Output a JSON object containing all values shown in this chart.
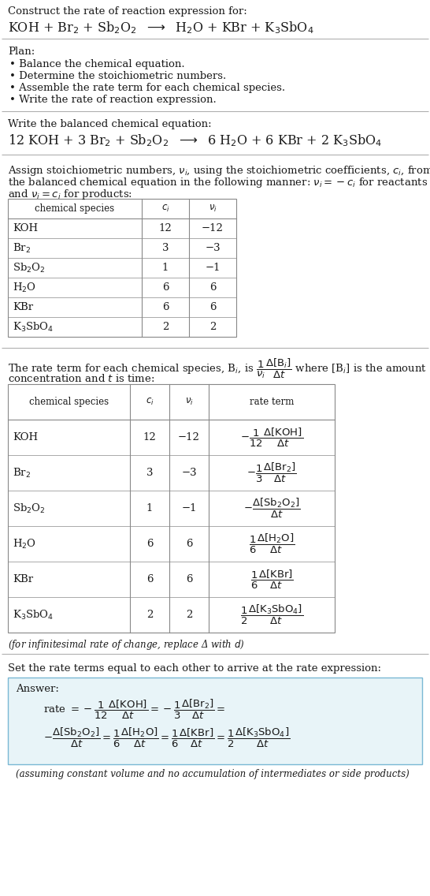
{
  "title_line1": "Construct the rate of reaction expression for:",
  "reaction_unbalanced": "KOH + Br$_2$ + Sb$_2$O$_2$  $\\longrightarrow$  H$_2$O + KBr + K$_3$SbO$_4$",
  "plan_header": "Plan:",
  "plan_items": [
    "• Balance the chemical equation.",
    "• Determine the stoichiometric numbers.",
    "• Assemble the rate term for each chemical species.",
    "• Write the rate of reaction expression."
  ],
  "balanced_header": "Write the balanced chemical equation:",
  "reaction_balanced": "12 KOH + 3 Br$_2$ + Sb$_2$O$_2$  $\\longrightarrow$  6 H$_2$O + 6 KBr + 2 K$_3$SbO$_4$",
  "assign_text1": "Assign stoichiometric numbers, $\\nu_i$, using the stoichiometric coefficients, $c_i$, from",
  "assign_text2": "the balanced chemical equation in the following manner: $\\nu_i = -c_i$ for reactants",
  "assign_text3": "and $\\nu_i = c_i$ for products:",
  "table1_headers": [
    "chemical species",
    "$c_i$",
    "$\\nu_i$"
  ],
  "table1_rows": [
    [
      "KOH",
      "12",
      "−12"
    ],
    [
      "Br$_2$",
      "3",
      "−3"
    ],
    [
      "Sb$_2$O$_2$",
      "1",
      "−1"
    ],
    [
      "H$_2$O",
      "6",
      "6"
    ],
    [
      "KBr",
      "6",
      "6"
    ],
    [
      "K$_3$SbO$_4$",
      "2",
      "2"
    ]
  ],
  "rate_text1": "The rate term for each chemical species, B$_i$, is $\\dfrac{1}{\\nu_i}\\dfrac{\\Delta[\\mathrm{B}_i]}{\\Delta t}$ where [B$_i$] is the amount",
  "rate_text2": "concentration and $t$ is time:",
  "table2_headers": [
    "chemical species",
    "$c_i$",
    "$\\nu_i$",
    "rate term"
  ],
  "table2_rows": [
    [
      "KOH",
      "12",
      "−12",
      "$-\\dfrac{1}{12}\\dfrac{\\Delta[\\mathrm{KOH}]}{\\Delta t}$"
    ],
    [
      "Br$_2$",
      "3",
      "−3",
      "$-\\dfrac{1}{3}\\dfrac{\\Delta[\\mathrm{Br}_2]}{\\Delta t}$"
    ],
    [
      "Sb$_2$O$_2$",
      "1",
      "−1",
      "$-\\dfrac{\\Delta[\\mathrm{Sb}_2\\mathrm{O}_2]}{\\Delta t}$"
    ],
    [
      "H$_2$O",
      "6",
      "6",
      "$\\dfrac{1}{6}\\dfrac{\\Delta[\\mathrm{H}_2\\mathrm{O}]}{\\Delta t}$"
    ],
    [
      "KBr",
      "6",
      "6",
      "$\\dfrac{1}{6}\\dfrac{\\Delta[\\mathrm{KBr}]}{\\Delta t}$"
    ],
    [
      "K$_3$SbO$_4$",
      "2",
      "2",
      "$\\dfrac{1}{2}\\dfrac{\\Delta[\\mathrm{K}_3\\mathrm{SbO}_4]}{\\Delta t}$"
    ]
  ],
  "infinitesimal_note": "(for infinitesimal rate of change, replace Δ with $d$)",
  "set_rate_text": "Set the rate terms equal to each other to arrive at the rate expression:",
  "answer_label": "Answer:",
  "answer_line1": "rate $= -\\dfrac{1}{12}\\dfrac{\\Delta[\\mathrm{KOH}]}{\\Delta t} = -\\dfrac{1}{3}\\dfrac{\\Delta[\\mathrm{Br}_2]}{\\Delta t} =$",
  "answer_line2": "$-\\dfrac{\\Delta[\\mathrm{Sb}_2\\mathrm{O}_2]}{\\Delta t} = \\dfrac{1}{6}\\dfrac{\\Delta[\\mathrm{H}_2\\mathrm{O}]}{\\Delta t} = \\dfrac{1}{6}\\dfrac{\\Delta[\\mathrm{KBr}]}{\\Delta t} = \\dfrac{1}{2}\\dfrac{\\Delta[\\mathrm{K}_3\\mathrm{SbO}_4]}{\\Delta t}$",
  "answer_note": "(assuming constant volume and no accumulation of intermediates or side products)",
  "bg_color": "#ffffff",
  "text_color": "#1a1a1a",
  "answer_box_bg": "#e8f4f8",
  "answer_box_border": "#7ab8d4"
}
